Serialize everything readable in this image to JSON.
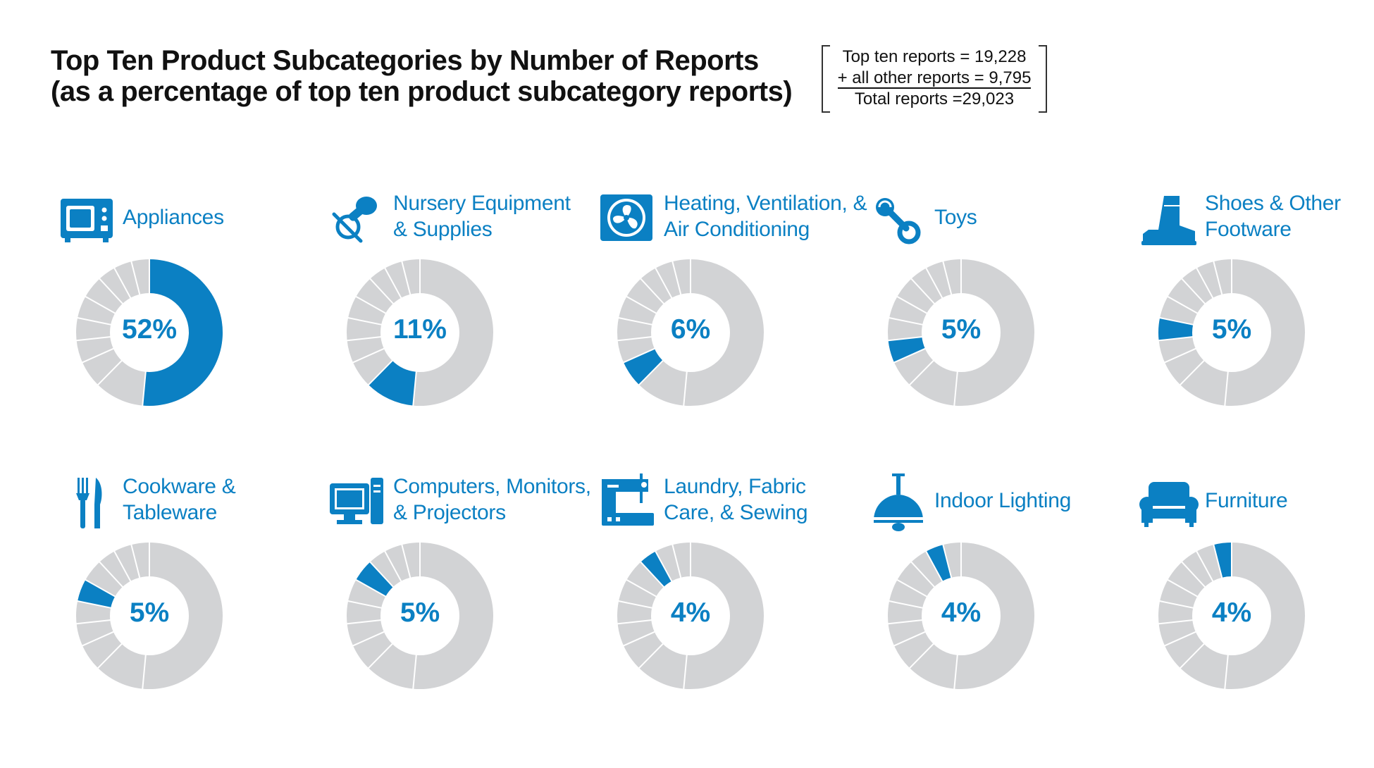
{
  "title_line1": "Top Ten Product Subcategories by Number of Reports",
  "title_line2": "(as a percentage of top ten product subcategory reports)",
  "totals": {
    "line1": "Top ten reports = 19,228",
    "line2": "+ all other reports = 9,795",
    "line3": "Total reports =29,023"
  },
  "colors": {
    "accent": "#0b80c3",
    "ring": "#d2d3d5",
    "divider": "#ffffff"
  },
  "chart_data": {
    "type": "pie",
    "title": "Top Ten Product Subcategories by Number of Reports",
    "subtitle": "(as a percentage of top ten product subcategory reports)",
    "categories": [
      "Appliances",
      "Nursery Equipment & Supplies",
      "Heating, Ventilation, & Air Conditioning",
      "Toys",
      "Shoes & Other Footware",
      "Cookware & Tableware",
      "Computers, Monitors, & Projectors",
      "Laundry, Fabric Care, & Sewing",
      "Indoor Lighting",
      "Furniture"
    ],
    "values": [
      52,
      11,
      6,
      5,
      5,
      5,
      5,
      4,
      4,
      4
    ],
    "unit": "%",
    "panels": [
      {
        "label_lines": [
          "Appliances"
        ],
        "value": 52,
        "value_label": "52%",
        "icon": "microwave-icon"
      },
      {
        "label_lines": [
          "Nursery Equipment",
          "& Supplies"
        ],
        "value": 11,
        "value_label": "11%",
        "icon": "pacifier-icon"
      },
      {
        "label_lines": [
          "Heating, Ventilation, &",
          "Air Conditioning"
        ],
        "value": 6,
        "value_label": "6%",
        "icon": "fan-icon"
      },
      {
        "label_lines": [
          "Toys"
        ],
        "value": 5,
        "value_label": "5%",
        "icon": "rattle-icon"
      },
      {
        "label_lines": [
          "Shoes & Other",
          "Footware"
        ],
        "value": 5,
        "value_label": "5%",
        "icon": "boot-icon"
      },
      {
        "label_lines": [
          "Cookware &",
          "Tableware"
        ],
        "value": 5,
        "value_label": "5%",
        "icon": "fork-knife-icon"
      },
      {
        "label_lines": [
          "Computers, Monitors,",
          "& Projectors"
        ],
        "value": 5,
        "value_label": "5%",
        "icon": "computer-icon"
      },
      {
        "label_lines": [
          "Laundry, Fabric",
          "Care, & Sewing"
        ],
        "value": 4,
        "value_label": "4%",
        "icon": "sewing-machine-icon"
      },
      {
        "label_lines": [
          "Indoor Lighting"
        ],
        "value": 4,
        "value_label": "4%",
        "icon": "pendant-lamp-icon"
      },
      {
        "label_lines": [
          "Furniture"
        ],
        "value": 4,
        "value_label": "4%",
        "icon": "sofa-icon"
      }
    ]
  }
}
